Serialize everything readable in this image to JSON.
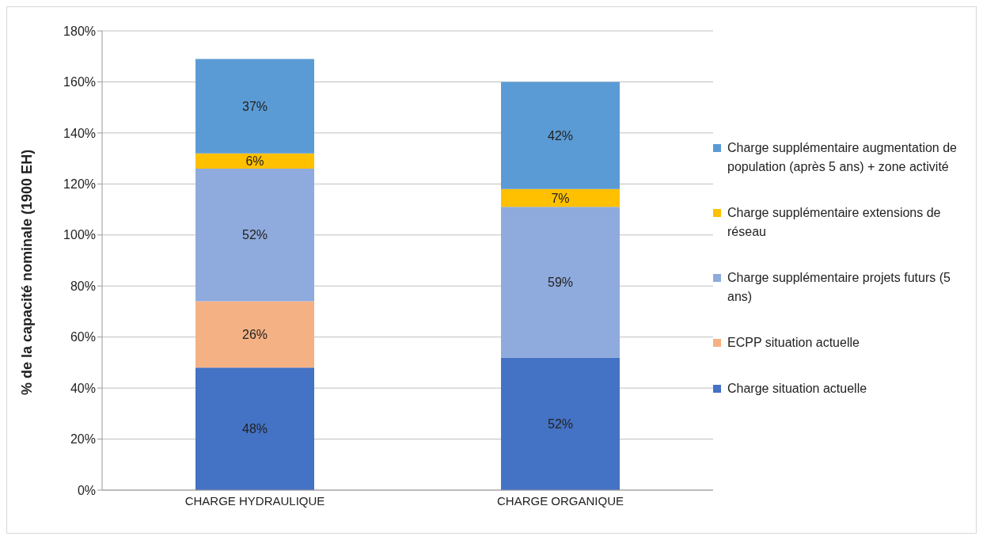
{
  "chart_data": {
    "type": "bar",
    "stacked": true,
    "ylabel": "% de la capacité nominale (1900 EH)",
    "categories": [
      "CHARGE HYDRAULIQUE",
      "CHARGE ORGANIQUE"
    ],
    "series": [
      {
        "name": "Charge situation actuelle",
        "color": "#4472c4",
        "values": [
          48,
          52
        ],
        "value_labels": [
          "48%",
          "52%"
        ]
      },
      {
        "name": "ECPP situation actuelle",
        "color": "#f4b183",
        "values": [
          26,
          null
        ],
        "value_labels": [
          "26%",
          null
        ]
      },
      {
        "name": "Charge supplémentaire projets futurs (5 ans)",
        "color": "#8faadc",
        "values": [
          52,
          59
        ],
        "value_labels": [
          "52%",
          "59%"
        ]
      },
      {
        "name": "Charge supplémentaire extensions de réseau",
        "color": "#ffc000",
        "values": [
          6,
          7
        ],
        "value_labels": [
          "6%",
          "7%"
        ]
      },
      {
        "name": "Charge supplémentaire augmentation de population (après 5 ans) + zone activité",
        "color": "#5b9bd5",
        "values": [
          37,
          42
        ],
        "value_labels": [
          "37%",
          "42%"
        ]
      }
    ],
    "ylim": [
      0,
      180
    ],
    "yticks": [
      {
        "value": 0,
        "label": "0%"
      },
      {
        "value": 20,
        "label": "20%"
      },
      {
        "value": 40,
        "label": "40%"
      },
      {
        "value": 60,
        "label": "60%"
      },
      {
        "value": 80,
        "label": "80%"
      },
      {
        "value": 100,
        "label": "100%"
      },
      {
        "value": 120,
        "label": "120%"
      },
      {
        "value": 140,
        "label": "140%"
      },
      {
        "value": 160,
        "label": "160%"
      },
      {
        "value": 180,
        "label": "180%"
      }
    ],
    "grid": "y",
    "legend": "right"
  }
}
